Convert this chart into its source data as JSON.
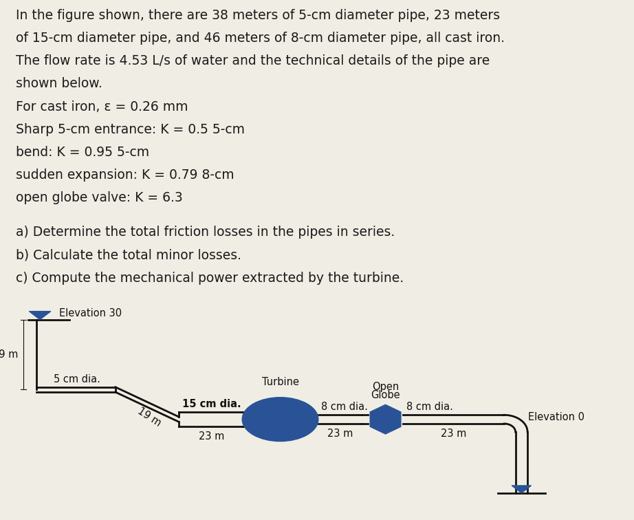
{
  "background_color": "#f0ede4",
  "text_color": "#1a1a1a",
  "pipe_color": "#111111",
  "blue_dark": "#2a5296",
  "text_lines": [
    "In the figure shown, there are 38 meters of 5-cm diameter pipe, 23 meters",
    "of 15-cm diameter pipe, and 46 meters of 8-cm diameter pipe, all cast iron.",
    "The flow rate is 4.53 L/s of water and the technical details of the pipe are",
    "shown below.",
    "For cast iron, ε = 0.26 mm",
    "Sharp 5-cm entrance: K = 0.5 5-cm",
    "bend: K = 0.95 5-cm",
    "sudden expansion: K = 0.79 8-cm",
    "open globe valve: K = 6.3",
    " ",
    "a) Determine the total friction losses in the pipes in series.",
    "b) Calculate the total minor losses.",
    "c) Compute the mechanical power extracted by the turbine."
  ],
  "font_size_text": 13.5,
  "font_size_diagram": 10.5,
  "line_heights": [
    1,
    1,
    1,
    1,
    1,
    1,
    1,
    1,
    1,
    0.5,
    1,
    1,
    1
  ]
}
